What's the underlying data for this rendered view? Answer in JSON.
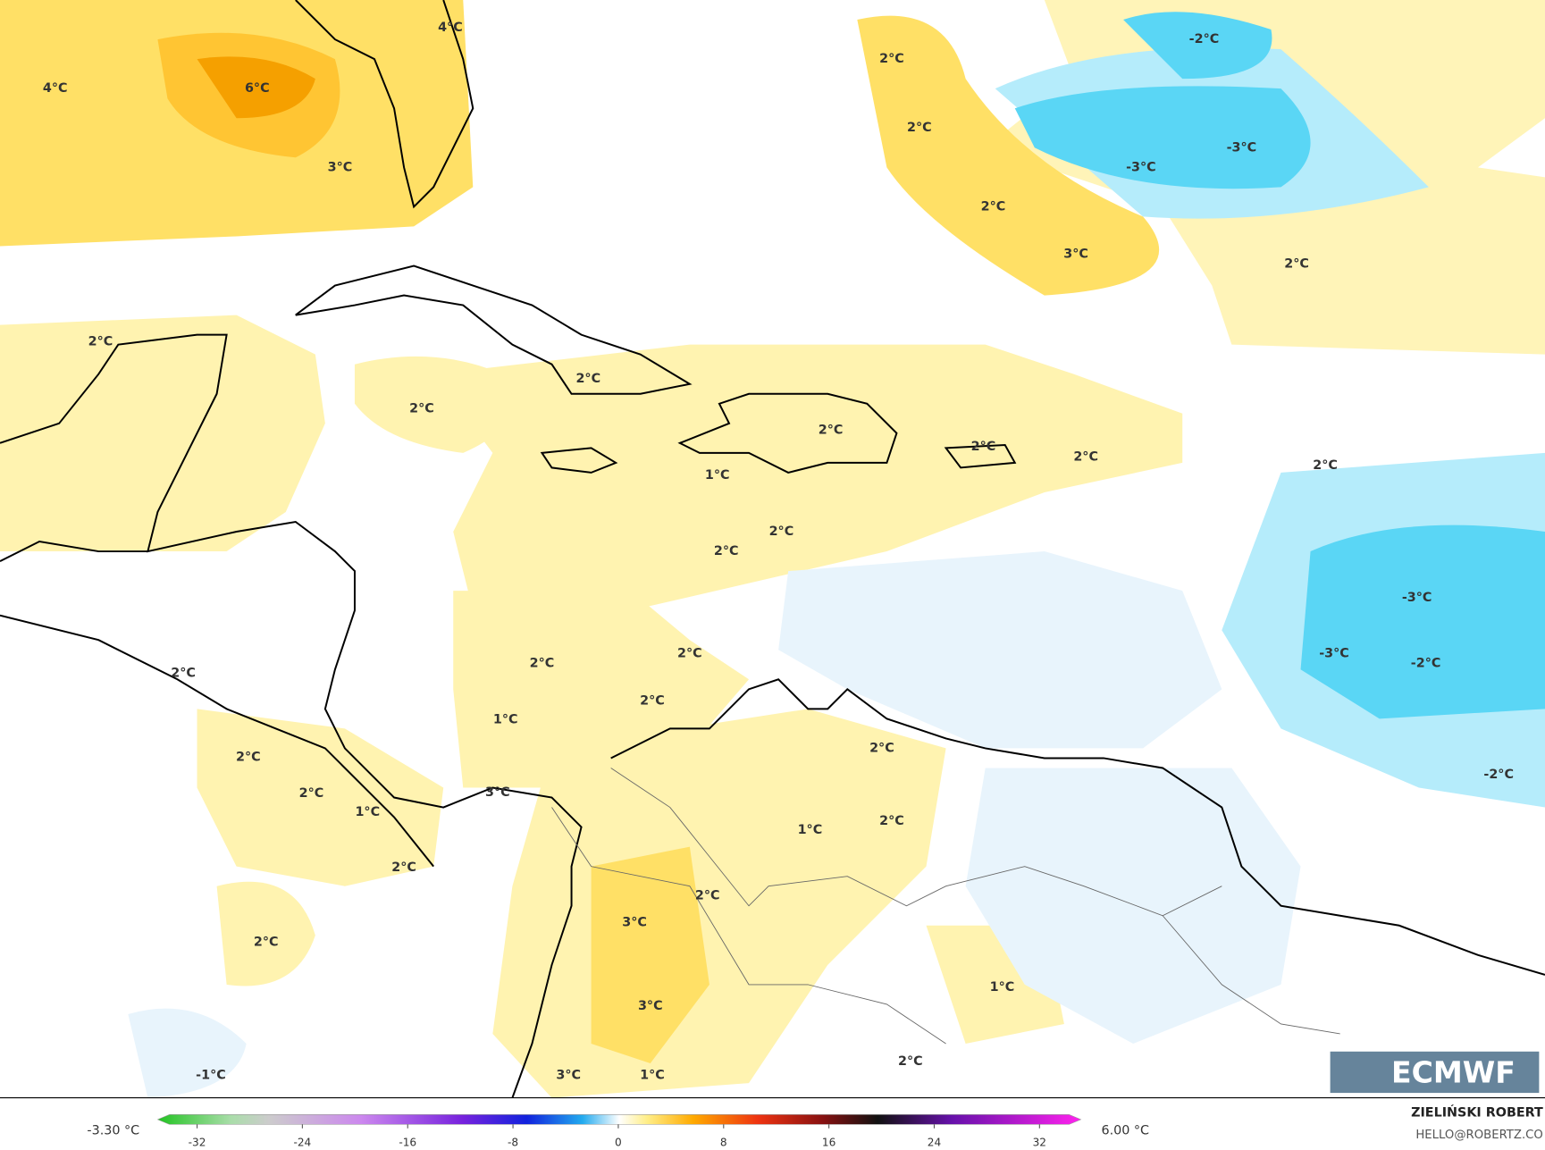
{
  "map": {
    "labels": [
      "4°C",
      "4°C",
      "6°C",
      "3°C",
      "2°C",
      "2°C",
      "-2°C",
      "-3°C",
      "-3°C",
      "2°C",
      "3°C",
      "2°C",
      "2°C",
      "2°C",
      "2°C",
      "2°C",
      "2°C",
      "2°C",
      "1°C",
      "2°C",
      "2°C",
      "2°C",
      "-3°C",
      "-3°C",
      "-2°C",
      "2°C",
      "2°C",
      "2°C",
      "2°C",
      "1°C",
      "2°C",
      "2°C",
      "-2°C",
      "3°C",
      "2°C",
      "1°C",
      "2°C",
      "1°C",
      "2°C",
      "2°C",
      "3°C",
      "2°C",
      "1°C",
      "3°C",
      "2°C",
      "-1°C",
      "3°C",
      "1°C"
    ],
    "colorbar": {
      "min_label": "-3.30 °C",
      "max_label": "6.00 °C",
      "ticks": [
        -32,
        -24,
        -16,
        -8,
        0,
        8,
        16,
        24,
        32
      ]
    },
    "credit": {
      "author": "ZIELIŃSKI ROBERT",
      "email": "HELLO@ROBERTZ.CO"
    },
    "logo": "ECMWF"
  }
}
